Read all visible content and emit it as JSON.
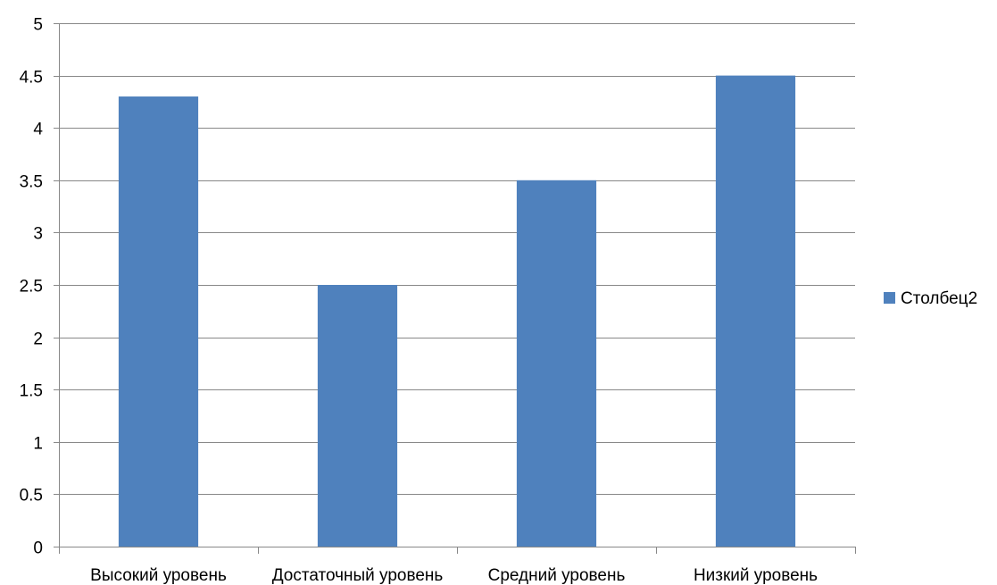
{
  "chart_data": {
    "type": "bar",
    "categories": [
      "Высокий уровень",
      "Достаточный уровень",
      "Средний уровень",
      "Низкий уровень"
    ],
    "series": [
      {
        "name": "Столбец2",
        "values": [
          4.3,
          2.5,
          3.5,
          4.5
        ],
        "color": "#4f81bd"
      }
    ],
    "ylim": [
      0,
      5
    ],
    "yticks": [
      "0",
      "0.5",
      "1",
      "1.5",
      "2",
      "2.5",
      "3",
      "3.5",
      "4",
      "4.5",
      "5"
    ],
    "grid": true,
    "legend_position": "right",
    "grid_color": "#888888"
  }
}
